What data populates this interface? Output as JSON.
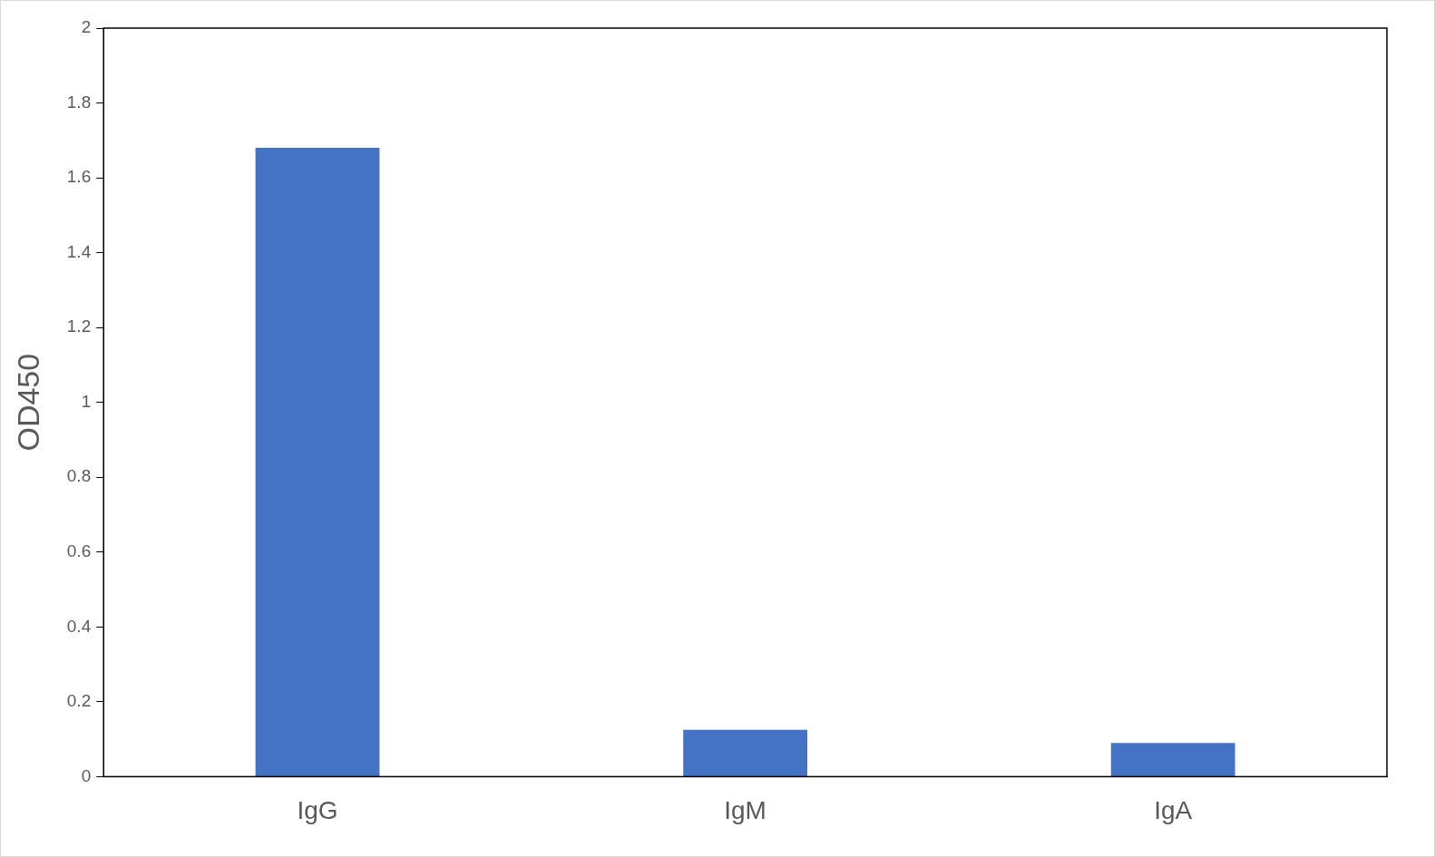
{
  "chart_data": {
    "type": "bar",
    "y_label": "OD450",
    "categories": [
      "IgG",
      "IgM",
      "IgA"
    ],
    "values": [
      1.68,
      0.125,
      0.09
    ],
    "color": "#4472c4",
    "ylim": [
      0,
      2
    ],
    "yticks": [
      0,
      0.2,
      0.4,
      0.6,
      0.8,
      1,
      1.2,
      1.4,
      1.6,
      1.8,
      2
    ],
    "grid": false
  }
}
